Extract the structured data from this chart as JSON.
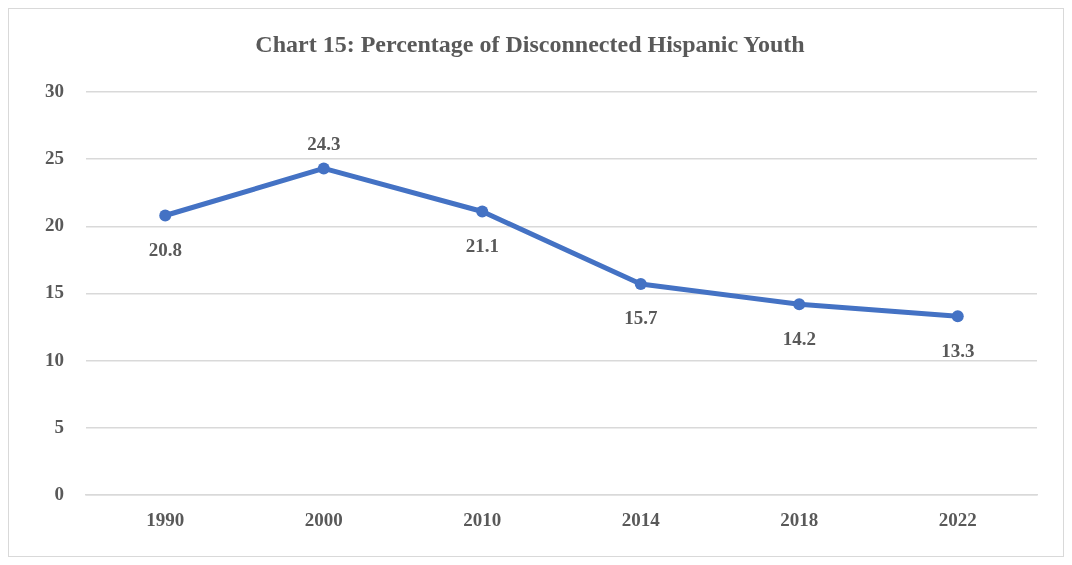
{
  "chart_data": {
    "type": "line",
    "title": "Chart 15: Percentage of Disconnected Hispanic Youth",
    "categories": [
      "1990",
      "2000",
      "2010",
      "2014",
      "2018",
      "2022"
    ],
    "series": [
      {
        "color": "#4472c4",
        "values": [
          20.8,
          24.3,
          21.1,
          15.7,
          14.2,
          13.3
        ]
      }
    ],
    "ylim": [
      0,
      30
    ],
    "yticks": [
      0,
      5,
      10,
      15,
      20,
      25,
      30
    ],
    "grid": "y",
    "legend": false,
    "marker": "circle",
    "line_style": "solid",
    "data_labels": true
  }
}
